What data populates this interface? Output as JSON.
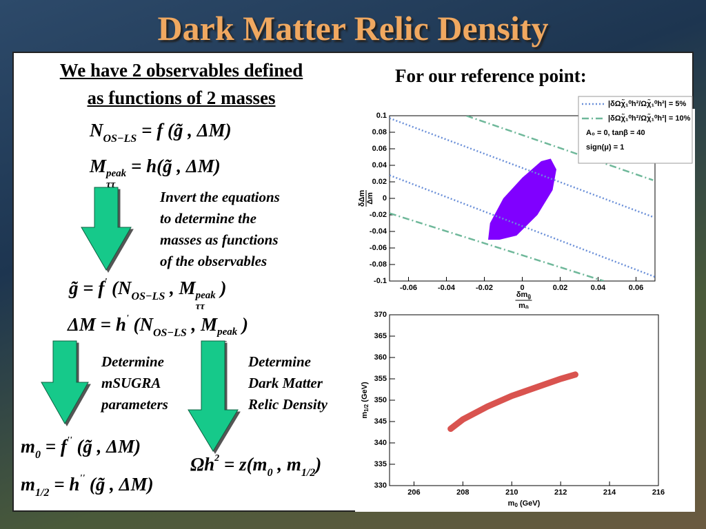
{
  "title": "Dark Matter Relic Density",
  "left_heading": [
    "We have 2 observables defined",
    "as functions of 2 masses"
  ],
  "equations": [
    [
      "N",
      "OS−LS",
      " = f (g̃ , ΔM)"
    ],
    [
      "M",
      "peak",
      "ττ",
      " = h(g̃ , ΔM)"
    ],
    [
      "g̃ = f",
      "'",
      " (N",
      "OS−LS",
      " , M",
      "peak",
      "ττ",
      " )"
    ],
    [
      "ΔM = h",
      "'",
      " (N",
      "OS−LS",
      " , M",
      "peak",
      "ττ",
      " )"
    ],
    [
      "m",
      "0",
      " = f",
      "''",
      " (g̃ , ΔM)"
    ],
    [
      "m",
      "1/2",
      " = h",
      "''",
      " (g̃ , ΔM)"
    ],
    [
      "Ωh",
      "2",
      " = z(m",
      "0",
      " , m",
      "1/2",
      ")"
    ]
  ],
  "notes": {
    "invert": [
      "Invert the equations",
      "to determine the",
      "masses as functions",
      "of the observables"
    ],
    "msugra": [
      "Determine",
      "mSUGRA",
      "parameters"
    ],
    "relic": [
      "Determine",
      "Dark Matter",
      "Relic Density"
    ]
  },
  "reference_heading": "For our reference point:",
  "chart_data": [
    {
      "type": "line",
      "xlabel": {
        "numerator": "δm",
        "numerator_sub": "g̃",
        "denominator": "m",
        "denominator_sub": "g̃"
      },
      "ylabel": {
        "numerator": "δΔm",
        "denominator": "Δm"
      },
      "xlim": [
        -0.07,
        0.07
      ],
      "xticks": [
        -0.06,
        -0.04,
        -0.02,
        0,
        0.02,
        0.04,
        0.06
      ],
      "ylim": [
        -0.1,
        0.1
      ],
      "yticks": [
        -0.1,
        -0.08,
        -0.06,
        -0.04,
        -0.02,
        0,
        0.02,
        0.04,
        0.06,
        0.08,
        0.1
      ],
      "legend": "top-right",
      "series": [
        {
          "name": "|δΩχ̃₁⁰h²/Ωχ̃₁⁰h²| = 5%",
          "color": "#6a8fd8",
          "dash": "dotted",
          "x": [
            -0.07,
            0.069,
            null,
            -0.07,
            0.07
          ],
          "values": [
            0.097,
            -0.0225,
            null,
            0.028,
            -0.095
          ]
        },
        {
          "name": "|δΩχ̃₁⁰h²/Ωχ̃₁⁰h²| = 10%",
          "color": "#6fb89a",
          "dash": "dash-dot",
          "x": [
            -0.0295,
            0.069,
            null,
            -0.07,
            0.043
          ],
          "values": [
            0.1,
            0.022,
            null,
            -0.018,
            -0.1
          ]
        }
      ],
      "legend_notes": [
        "A₀ = 0,  tanβ = 40",
        "sign(μ) = 1"
      ],
      "region": {
        "color": "#8000ff",
        "x": [
          -0.018,
          -0.017,
          -0.01,
          0,
          0.01,
          0.015,
          0.018,
          0.016,
          0.008,
          -0.003,
          -0.012
        ],
        "values": [
          -0.05,
          -0.03,
          0,
          0.025,
          0.045,
          0.048,
          0.035,
          0.01,
          -0.02,
          -0.045,
          -0.05
        ]
      }
    },
    {
      "type": "line",
      "xlabel": [
        "m",
        "0",
        " (GeV)"
      ],
      "ylabel": [
        "m",
        "1/2",
        " (GeV)"
      ],
      "xlim": [
        205,
        216
      ],
      "xticks": [
        206,
        208,
        210,
        212,
        214,
        216
      ],
      "ylim": [
        330,
        370
      ],
      "yticks": [
        330,
        335,
        340,
        345,
        350,
        355,
        360,
        365,
        370
      ],
      "band": {
        "color": "#d9534f",
        "x": [
          207.5,
          208,
          209,
          210,
          211,
          212,
          212.6
        ],
        "values": [
          343.3,
          345.5,
          348.5,
          351,
          353,
          355,
          356
        ]
      }
    }
  ]
}
